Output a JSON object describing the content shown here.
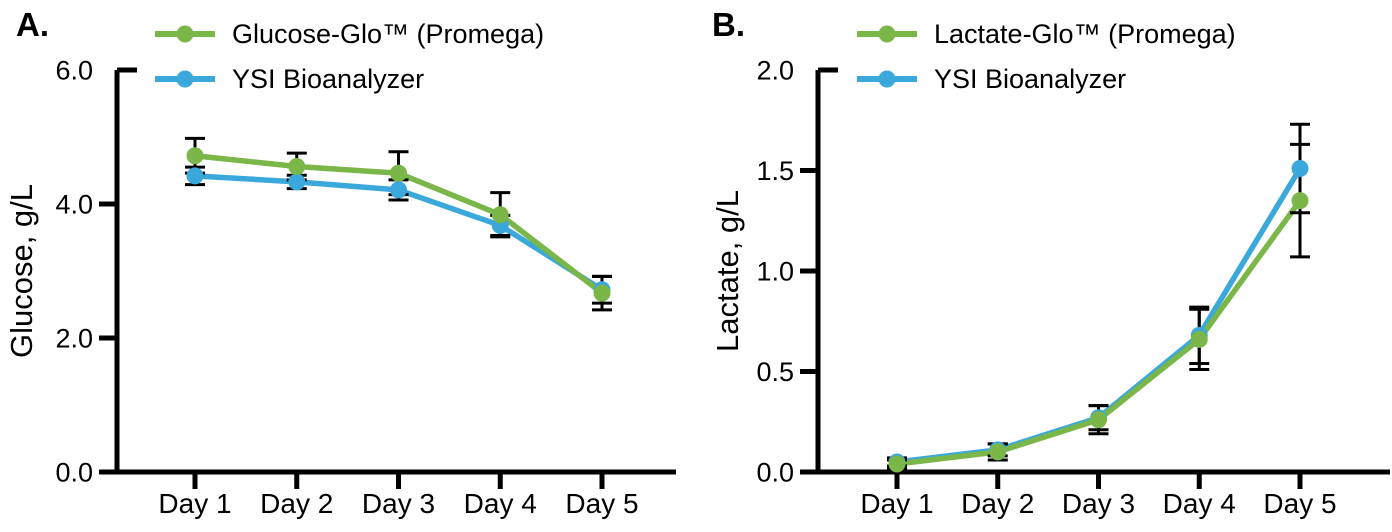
{
  "figure_background": "#ffffff",
  "chart_data": [
    {
      "type": "line",
      "panel_label": "A.",
      "categories": [
        "Day 1",
        "Day 2",
        "Day 3",
        "Day 4",
        "Day 5"
      ],
      "xlabel": "",
      "ylabel": "Glucose, g/L",
      "ylim": [
        0.0,
        6.0
      ],
      "ytick_values": [
        0.0,
        2.0,
        4.0,
        6.0
      ],
      "ytick_labels": [
        "0.0",
        "2.0",
        "4.0",
        "6.0"
      ],
      "grid": false,
      "legend_position": "top-left",
      "error_bar_color": "#000000",
      "series": [
        {
          "name": "Glucose-Glo™ (Promega)",
          "color": "#7AB648",
          "marker": "circle",
          "values": [
            4.72,
            4.56,
            4.46,
            3.84,
            2.67
          ],
          "errors": [
            0.26,
            0.2,
            0.32,
            0.33,
            0.25
          ]
        },
        {
          "name": "YSI Bioanalyzer",
          "color": "#3BA8DC",
          "marker": "circle",
          "values": [
            4.42,
            4.33,
            4.21,
            3.68,
            2.72
          ],
          "errors": [
            0.13,
            0.1,
            0.15,
            0.15,
            0.2
          ]
        }
      ]
    },
    {
      "type": "line",
      "panel_label": "B.",
      "categories": [
        "Day 1",
        "Day 2",
        "Day 3",
        "Day 4",
        "Day 5"
      ],
      "xlabel": "",
      "ylabel": "Lactate, g/L",
      "ylim": [
        0.0,
        2.0
      ],
      "ytick_values": [
        0.0,
        0.5,
        1.0,
        1.5,
        2.0
      ],
      "ytick_labels": [
        "0.0",
        "0.5",
        "1.0",
        "1.5",
        "2.0"
      ],
      "grid": false,
      "legend_position": "top-left",
      "error_bar_color": "#000000",
      "series": [
        {
          "name": "Lactate-Glo™ (Promega)",
          "color": "#7AB648",
          "marker": "circle",
          "values": [
            0.04,
            0.1,
            0.26,
            0.66,
            1.35
          ],
          "errors": [
            0.02,
            0.04,
            0.07,
            0.15,
            0.28
          ]
        },
        {
          "name": "YSI Bioanalyzer",
          "color": "#3BA8DC",
          "marker": "circle",
          "values": [
            0.05,
            0.11,
            0.27,
            0.68,
            1.51
          ],
          "errors": [
            0.02,
            0.03,
            0.06,
            0.14,
            0.22
          ]
        }
      ]
    }
  ]
}
